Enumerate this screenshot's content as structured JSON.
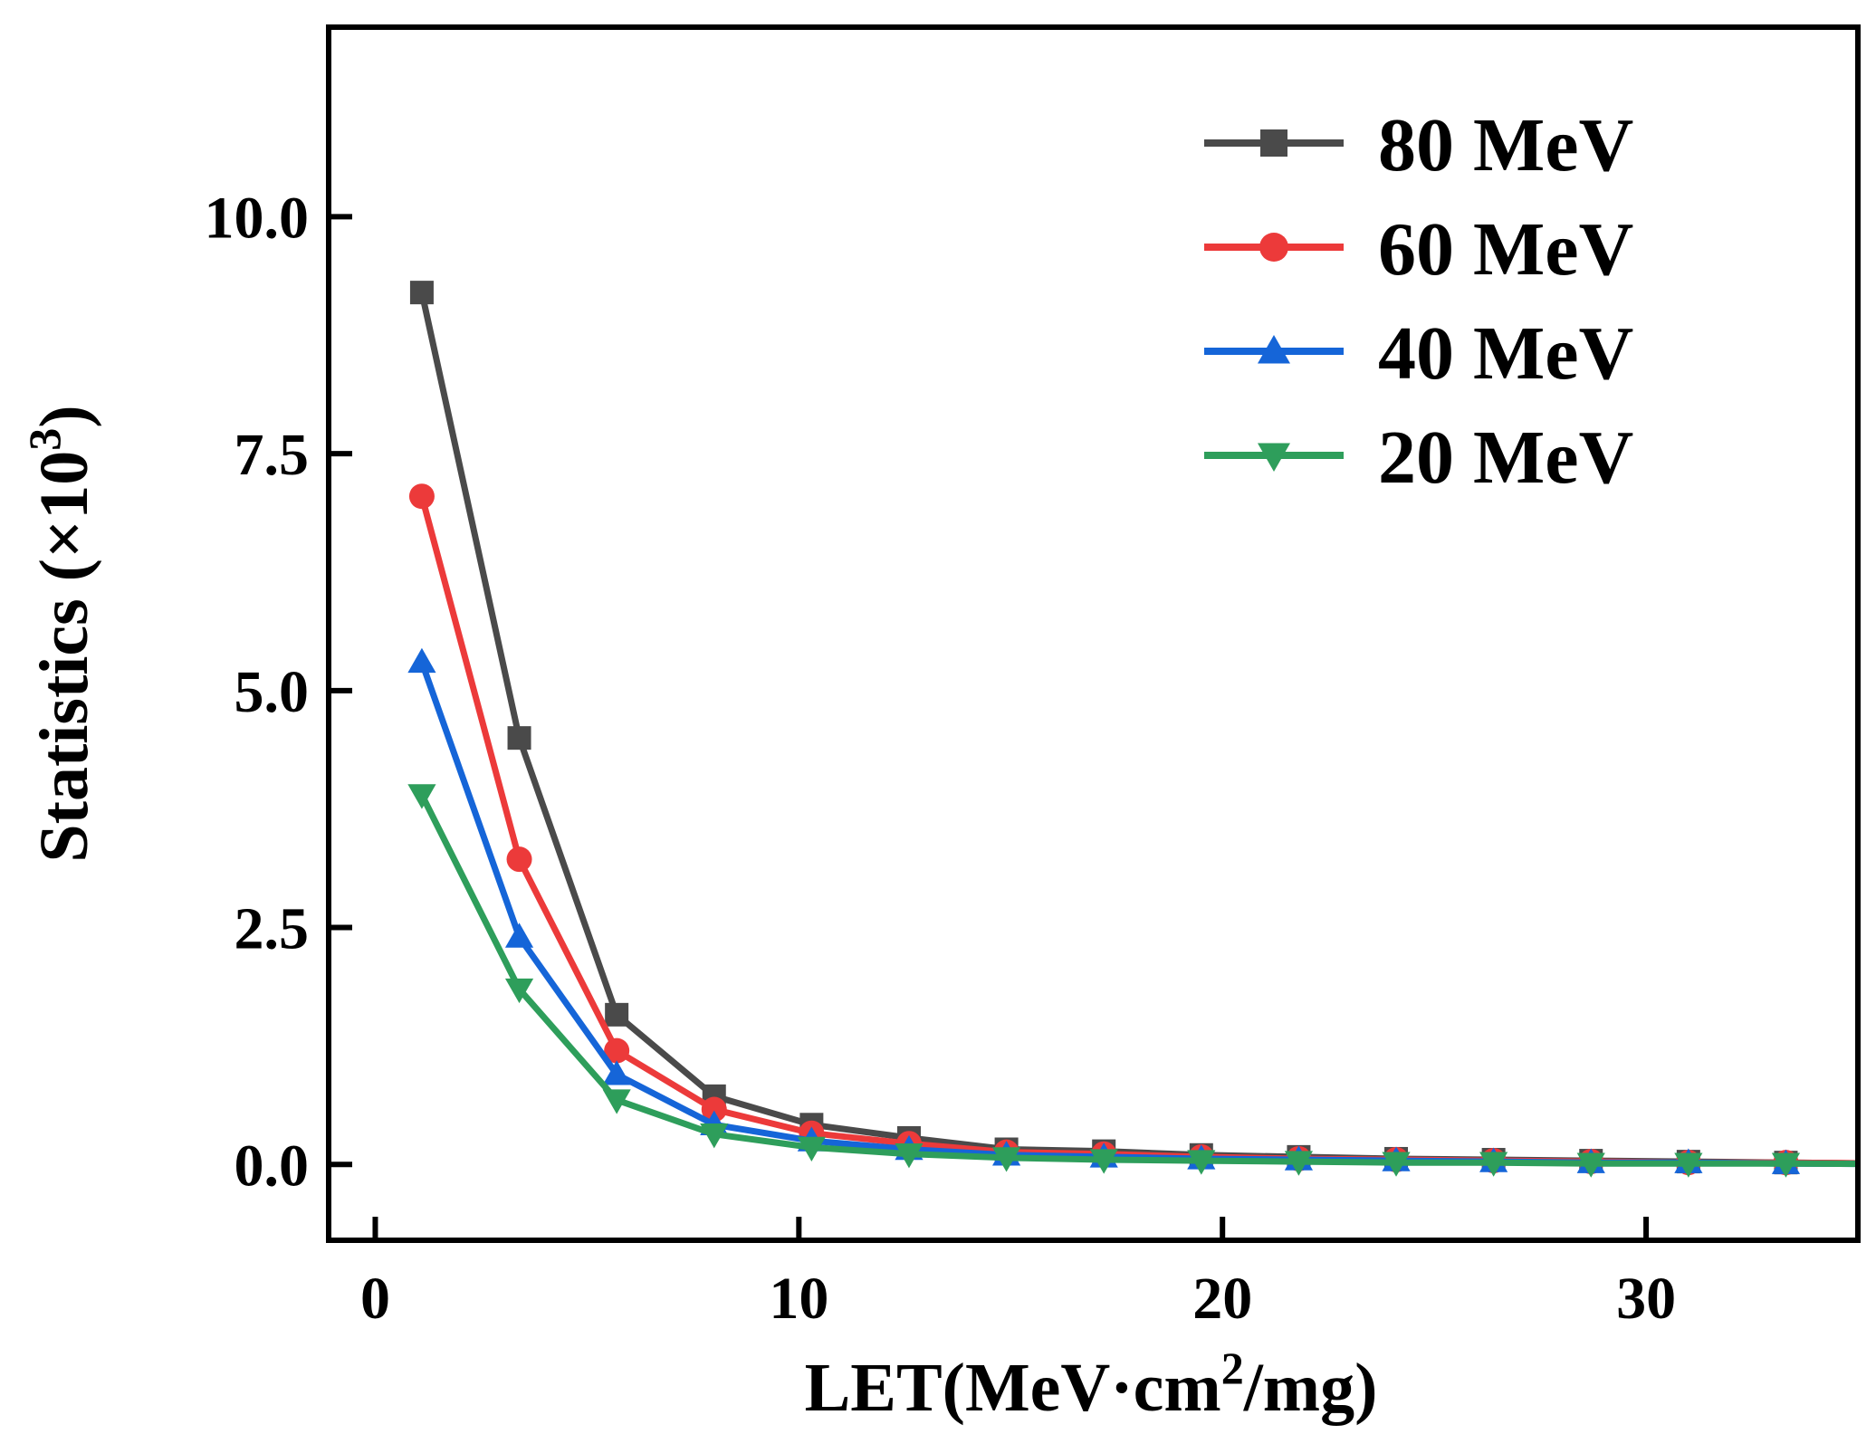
{
  "chart_data": {
    "type": "line",
    "x": [
      1.1,
      3.4,
      5.7,
      8.0,
      10.3,
      12.6,
      14.9,
      17.2,
      19.5,
      21.8,
      24.1,
      26.4,
      28.7,
      31.0,
      33.3
    ],
    "series": [
      {
        "name": "80 MeV",
        "color": "#4a4a4a",
        "marker": "square",
        "values": [
          9.2,
          4.5,
          1.58,
          0.72,
          0.42,
          0.28,
          0.16,
          0.14,
          0.1,
          0.08,
          0.06,
          0.05,
          0.04,
          0.03,
          0.02
        ]
      },
      {
        "name": "60 MeV",
        "color": "#ec3a3a",
        "marker": "circle",
        "values": [
          7.05,
          3.22,
          1.2,
          0.58,
          0.33,
          0.22,
          0.13,
          0.11,
          0.08,
          0.06,
          0.05,
          0.04,
          0.03,
          0.02,
          0.02
        ]
      },
      {
        "name": "40 MeV",
        "color": "#1565d8",
        "marker": "triangle-up",
        "values": [
          5.3,
          2.4,
          0.95,
          0.42,
          0.25,
          0.16,
          0.1,
          0.08,
          0.06,
          0.05,
          0.04,
          0.03,
          0.02,
          0.02,
          0.01
        ]
      },
      {
        "name": "20 MeV",
        "color": "#2e9e5b",
        "marker": "triangle-down",
        "values": [
          3.9,
          1.85,
          0.68,
          0.32,
          0.18,
          0.11,
          0.07,
          0.05,
          0.04,
          0.03,
          0.02,
          0.02,
          0.01,
          0.01,
          0.01
        ]
      }
    ],
    "xlabel_main": "LET(MeV·cm",
    "xlabel_sup": "2",
    "xlabel_tail": "/mg)",
    "ylabel_main": "Statistics (×10",
    "ylabel_sup": "3",
    "ylabel_tail": ")",
    "xlim": [
      -1.1,
      35
    ],
    "ylim": [
      -0.8,
      12.0
    ],
    "xticks": [
      0,
      10,
      20,
      30
    ],
    "xtick_labels": [
      "0",
      "10",
      "20",
      "30"
    ],
    "yticks": [
      0.0,
      2.5,
      5.0,
      7.5,
      10.0
    ],
    "ytick_labels": [
      "0.0",
      "2.5",
      "5.0",
      "7.5",
      "10.0"
    ],
    "legend_position": "top-right",
    "grid": false
  }
}
